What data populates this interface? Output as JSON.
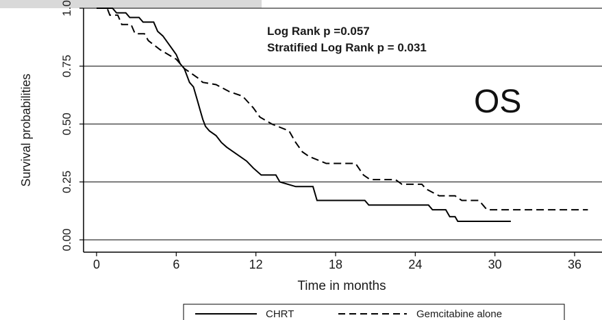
{
  "chart_data": {
    "type": "line",
    "title": "",
    "xlabel": "Time in months",
    "ylabel": "Survival probabilities",
    "xlim": [
      -0.5,
      37
    ],
    "ylim": [
      -0.02,
      1.0
    ],
    "x_ticks": [
      0,
      6,
      12,
      18,
      24,
      30,
      36
    ],
    "y_ticks": [
      0.0,
      0.25,
      0.5,
      0.75,
      1.0
    ],
    "x_tick_labels": [
      "0",
      "6",
      "12",
      "18",
      "24",
      "30",
      "36"
    ],
    "y_tick_labels": [
      "0.00",
      "0.25",
      "0.50",
      "0.75",
      "1.0"
    ],
    "grid": "horizontal",
    "legend_position": "bottom",
    "annotations": {
      "stat_line1": "Log Rank p =0.057",
      "stat_line2": "Stratified Log Rank p = 0.031",
      "panel_label": "OS"
    },
    "series": [
      {
        "name": "CHRT",
        "style": "solid",
        "color": "#000000",
        "points": [
          [
            0,
            1.0
          ],
          [
            1.2,
            1.0
          ],
          [
            1.5,
            0.98
          ],
          [
            2.2,
            0.98
          ],
          [
            2.5,
            0.96
          ],
          [
            3.2,
            0.96
          ],
          [
            3.5,
            0.94
          ],
          [
            4.3,
            0.94
          ],
          [
            4.6,
            0.9
          ],
          [
            5.0,
            0.88
          ],
          [
            5.5,
            0.84
          ],
          [
            6.0,
            0.8
          ],
          [
            6.3,
            0.76
          ],
          [
            6.6,
            0.74
          ],
          [
            7.0,
            0.68
          ],
          [
            7.3,
            0.66
          ],
          [
            7.6,
            0.6
          ],
          [
            7.8,
            0.56
          ],
          [
            8.0,
            0.52
          ],
          [
            8.2,
            0.49
          ],
          [
            8.5,
            0.47
          ],
          [
            9.0,
            0.45
          ],
          [
            9.4,
            0.42
          ],
          [
            9.8,
            0.4
          ],
          [
            10.3,
            0.38
          ],
          [
            10.8,
            0.36
          ],
          [
            11.3,
            0.34
          ],
          [
            11.8,
            0.31
          ],
          [
            12.4,
            0.28
          ],
          [
            13.5,
            0.28
          ],
          [
            13.8,
            0.25
          ],
          [
            15.0,
            0.23
          ],
          [
            16.3,
            0.23
          ],
          [
            16.6,
            0.17
          ],
          [
            20.2,
            0.17
          ],
          [
            20.5,
            0.15
          ],
          [
            25.0,
            0.15
          ],
          [
            25.3,
            0.13
          ],
          [
            26.3,
            0.13
          ],
          [
            26.6,
            0.1
          ],
          [
            27.0,
            0.1
          ],
          [
            27.2,
            0.08
          ],
          [
            31.2,
            0.08
          ]
        ]
      },
      {
        "name": "Gemcitabine alone",
        "style": "dashed",
        "color": "#000000",
        "points": [
          [
            0,
            1.0
          ],
          [
            0.8,
            1.0
          ],
          [
            1.0,
            0.97
          ],
          [
            1.6,
            0.97
          ],
          [
            1.9,
            0.93
          ],
          [
            2.6,
            0.93
          ],
          [
            2.9,
            0.89
          ],
          [
            3.6,
            0.89
          ],
          [
            3.9,
            0.86
          ],
          [
            4.8,
            0.82
          ],
          [
            5.4,
            0.8
          ],
          [
            6.0,
            0.78
          ],
          [
            6.6,
            0.74
          ],
          [
            7.1,
            0.72
          ],
          [
            7.6,
            0.7
          ],
          [
            8.0,
            0.68
          ],
          [
            9.0,
            0.67
          ],
          [
            10.0,
            0.64
          ],
          [
            11.0,
            0.62
          ],
          [
            11.8,
            0.57
          ],
          [
            12.3,
            0.53
          ],
          [
            13.2,
            0.5
          ],
          [
            14.5,
            0.47
          ],
          [
            15.0,
            0.42
          ],
          [
            15.5,
            0.38
          ],
          [
            16.0,
            0.36
          ],
          [
            17.3,
            0.33
          ],
          [
            19.5,
            0.33
          ],
          [
            20.1,
            0.28
          ],
          [
            20.6,
            0.26
          ],
          [
            22.5,
            0.26
          ],
          [
            23.0,
            0.24
          ],
          [
            24.5,
            0.24
          ],
          [
            24.8,
            0.22
          ],
          [
            25.8,
            0.19
          ],
          [
            27.0,
            0.19
          ],
          [
            27.5,
            0.17
          ],
          [
            28.8,
            0.17
          ],
          [
            29.1,
            0.15
          ],
          [
            29.4,
            0.13
          ],
          [
            37.0,
            0.13
          ]
        ]
      }
    ]
  }
}
